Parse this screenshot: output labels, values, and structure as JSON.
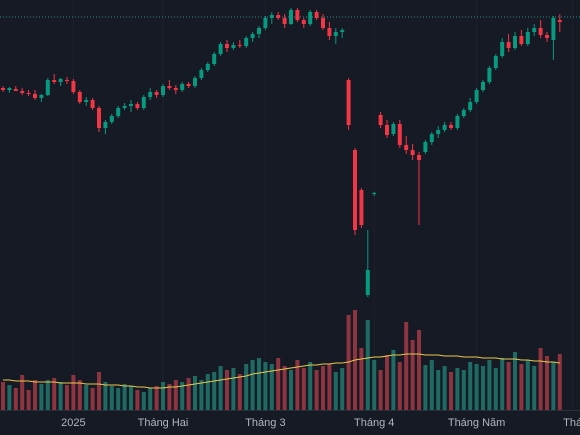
{
  "chart_data": {
    "type": "candlestick",
    "up_color": "#089981",
    "down_color": "#f23645",
    "volume_up_color": "#1f6b64",
    "volume_down_color": "#8e3440",
    "ma_color": "#e8c84a",
    "price_line_color": "#2e8f88",
    "ylim": [
      0,
      300
    ],
    "vlim": [
      0,
      100
    ],
    "price_line": 283,
    "xticks": [
      {
        "value": 11,
        "label": "2025"
      },
      {
        "value": 25,
        "label": "Tháng Hai"
      },
      {
        "value": 41,
        "label": "Tháng 3"
      },
      {
        "value": 58,
        "label": "Tháng 4"
      },
      {
        "value": 74,
        "label": "Tháng Năm"
      },
      {
        "value": 89,
        "label": "Thá"
      }
    ],
    "ohlc": [
      [
        212,
        214,
        208,
        210
      ],
      [
        210,
        213,
        207,
        212
      ],
      [
        211,
        214,
        209,
        209
      ],
      [
        209,
        212,
        205,
        207
      ],
      [
        207,
        210,
        204,
        206
      ],
      [
        206,
        210,
        200,
        202
      ],
      [
        202,
        206,
        198,
        205
      ],
      [
        205,
        222,
        204,
        220
      ],
      [
        220,
        226,
        216,
        218
      ],
      [
        218,
        222,
        214,
        221
      ],
      [
        220,
        223,
        216,
        219
      ],
      [
        219,
        221,
        206,
        208
      ],
      [
        208,
        210,
        196,
        198
      ],
      [
        198,
        203,
        194,
        200
      ],
      [
        200,
        202,
        190,
        192
      ],
      [
        192,
        194,
        168,
        172
      ],
      [
        172,
        180,
        166,
        178
      ],
      [
        178,
        186,
        176,
        184
      ],
      [
        184,
        194,
        182,
        192
      ],
      [
        192,
        197,
        190,
        194
      ],
      [
        194,
        200,
        188,
        196
      ],
      [
        196,
        198,
        190,
        192
      ],
      [
        192,
        205,
        190,
        203
      ],
      [
        203,
        212,
        200,
        208
      ],
      [
        208,
        210,
        202,
        205
      ],
      [
        205,
        216,
        203,
        214
      ],
      [
        214,
        220,
        210,
        212
      ],
      [
        212,
        215,
        206,
        210
      ],
      [
        210,
        218,
        208,
        216
      ],
      [
        216,
        218,
        212,
        214
      ],
      [
        214,
        224,
        212,
        222
      ],
      [
        222,
        232,
        220,
        230
      ],
      [
        230,
        238,
        228,
        236
      ],
      [
        236,
        248,
        234,
        246
      ],
      [
        246,
        258,
        244,
        256
      ],
      [
        256,
        260,
        248,
        252
      ],
      [
        252,
        258,
        250,
        255
      ],
      [
        255,
        260,
        252,
        254
      ],
      [
        254,
        264,
        252,
        262
      ],
      [
        262,
        268,
        258,
        266
      ],
      [
        266,
        274,
        262,
        272
      ],
      [
        272,
        284,
        270,
        282
      ],
      [
        282,
        288,
        276,
        285
      ],
      [
        285,
        288,
        280,
        282
      ],
      [
        282,
        286,
        272,
        276
      ],
      [
        276,
        292,
        275,
        290
      ],
      [
        290,
        292,
        278,
        280
      ],
      [
        280,
        282,
        272,
        276
      ],
      [
        276,
        290,
        274,
        288
      ],
      [
        288,
        290,
        280,
        282
      ],
      [
        282,
        286,
        270,
        272
      ],
      [
        272,
        278,
        260,
        264
      ],
      [
        264,
        272,
        256,
        268
      ],
      [
        268,
        272,
        262,
        270
      ],
      [
        220,
        222,
        170,
        175
      ],
      [
        150,
        152,
        65,
        70
      ],
      [
        110,
        112,
        72,
        75
      ],
      [
        5,
        70,
        3,
        30
      ],
      [
        106,
        108,
        104,
        107
      ],
      [
        185,
        188,
        172,
        175
      ],
      [
        175,
        180,
        162,
        165
      ],
      [
        166,
        178,
        164,
        176
      ],
      [
        176,
        180,
        152,
        155
      ],
      [
        155,
        164,
        146,
        150
      ],
      [
        150,
        156,
        140,
        145
      ],
      [
        145,
        148,
        75,
        140
      ],
      [
        148,
        160,
        146,
        158
      ],
      [
        158,
        168,
        155,
        166
      ],
      [
        166,
        174,
        162,
        170
      ],
      [
        170,
        178,
        168,
        175
      ],
      [
        175,
        178,
        170,
        172
      ],
      [
        172,
        186,
        170,
        184
      ],
      [
        184,
        192,
        182,
        190
      ],
      [
        190,
        202,
        188,
        198
      ],
      [
        198,
        212,
        196,
        210
      ],
      [
        210,
        220,
        208,
        218
      ],
      [
        218,
        234,
        216,
        232
      ],
      [
        232,
        246,
        230,
        244
      ],
      [
        244,
        262,
        242,
        258
      ],
      [
        258,
        266,
        248,
        252
      ],
      [
        252,
        268,
        250,
        264
      ],
      [
        264,
        270,
        254,
        256
      ],
      [
        256,
        272,
        254,
        268
      ],
      [
        268,
        276,
        264,
        272
      ],
      [
        272,
        280,
        262,
        265
      ],
      [
        265,
        268,
        258,
        262
      ],
      [
        260,
        284,
        240,
        282
      ],
      [
        280,
        286,
        268,
        278
      ]
    ],
    "volume": [
      28,
      25,
      22,
      35,
      20,
      30,
      26,
      30,
      32,
      28,
      25,
      35,
      30,
      25,
      22,
      38,
      28,
      24,
      22,
      26,
      24,
      20,
      18,
      22,
      24,
      28,
      26,
      30,
      28,
      32,
      34,
      30,
      36,
      38,
      44,
      40,
      42,
      36,
      46,
      50,
      52,
      48,
      46,
      52,
      44,
      40,
      50,
      42,
      48,
      40,
      44,
      46,
      38,
      42,
      95,
      100,
      62,
      90,
      50,
      40,
      55,
      60,
      48,
      88,
      70,
      80,
      45,
      50,
      40,
      44,
      38,
      42,
      40,
      48,
      46,
      44,
      50,
      42,
      52,
      48,
      58,
      46,
      50,
      44,
      62,
      54,
      48,
      56
    ],
    "volume_ma": [
      30,
      30,
      29,
      29,
      29,
      28,
      28,
      28,
      28,
      27,
      27,
      27,
      27,
      26,
      26,
      26,
      25,
      25,
      25,
      24,
      24,
      23,
      23,
      22,
      22,
      22,
      23,
      23,
      24,
      25,
      26,
      27,
      28,
      29,
      30,
      31,
      32,
      33,
      34,
      36,
      37,
      38,
      39,
      40,
      41,
      42,
      43,
      44,
      45,
      45,
      46,
      46,
      47,
      47,
      48,
      50,
      51,
      52,
      53,
      53,
      54,
      55,
      55,
      56,
      56,
      56,
      55,
      55,
      55,
      54,
      54,
      54,
      53,
      53,
      53,
      52,
      52,
      52,
      51,
      51,
      51,
      50,
      50,
      49,
      49,
      48,
      48,
      47
    ]
  }
}
